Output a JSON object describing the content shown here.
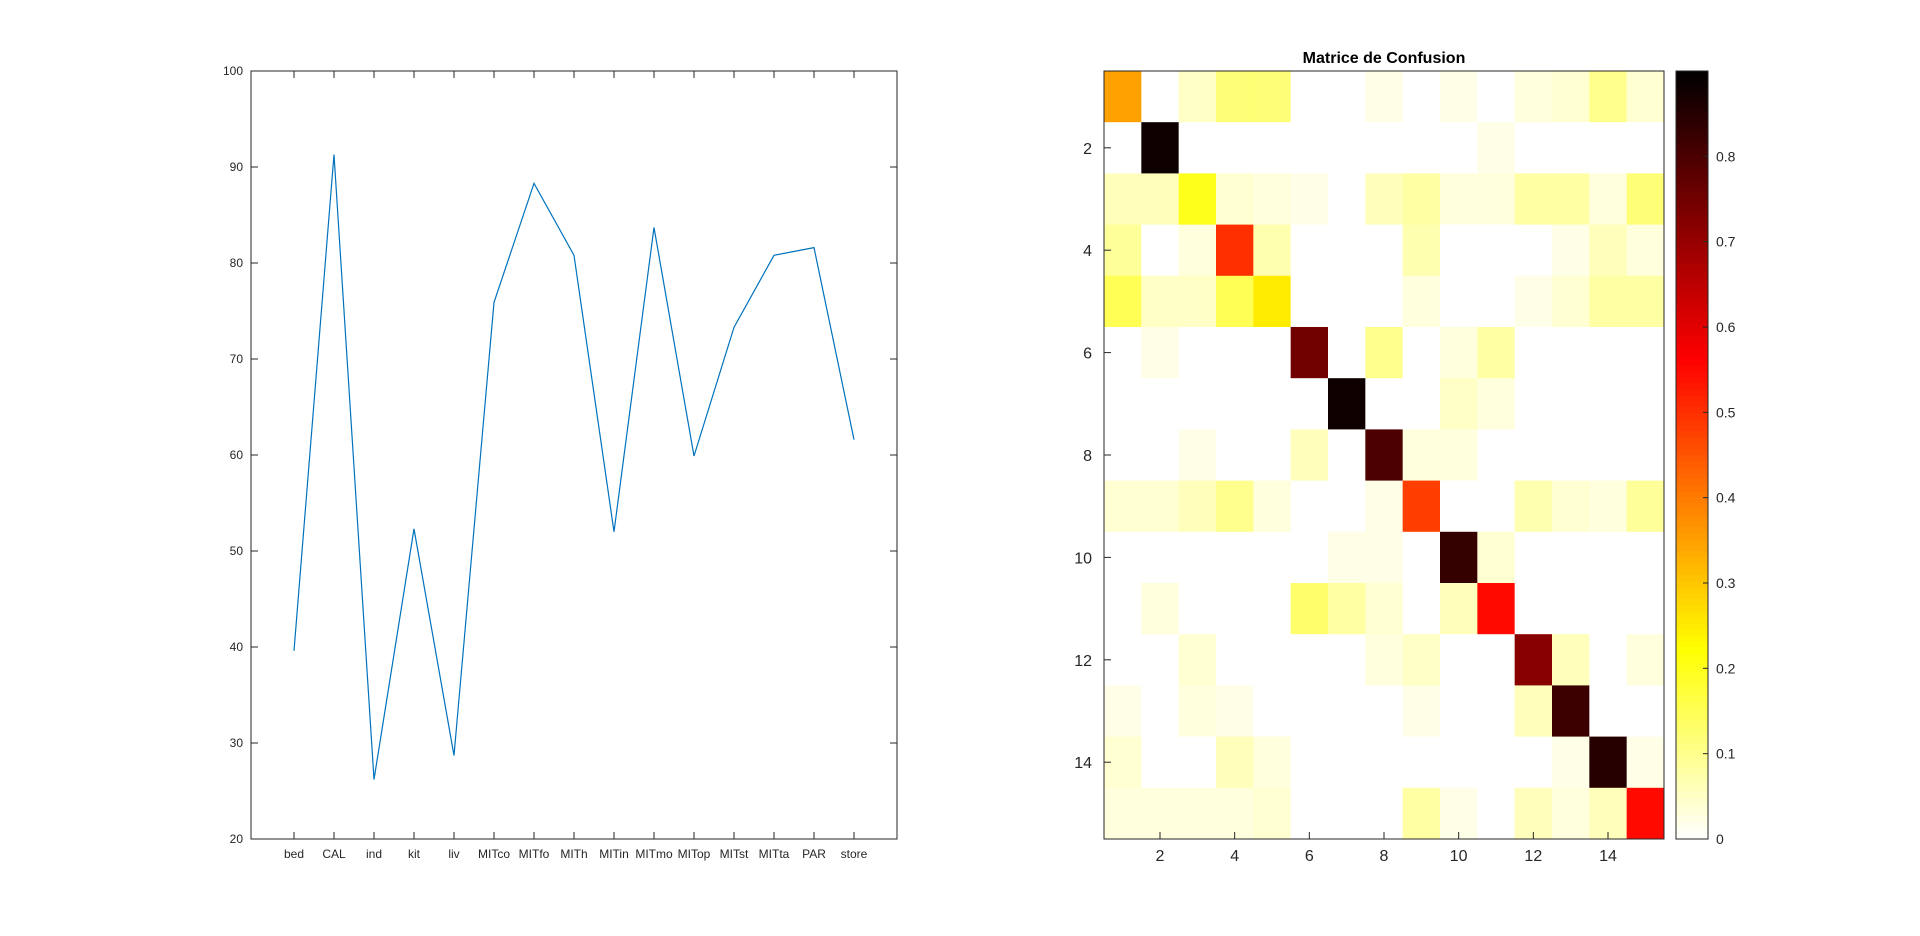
{
  "figure": {
    "background": "#ffffff",
    "axis_color": "#262626",
    "line_color": "#0072bd"
  },
  "chart_data": [
    {
      "type": "line",
      "title": "",
      "xlabel": "",
      "ylabel": "",
      "categories": [
        "bed",
        "CAL",
        "ind",
        "kit",
        "liv",
        "MITco",
        "MITfo",
        "MITh",
        "MITin",
        "MITmo",
        "MITop",
        "MITst",
        "MITta",
        "PAR",
        "store"
      ],
      "values": [
        39.6,
        91.3,
        26.2,
        52.3,
        28.7,
        75.9,
        88.3,
        80.8,
        52.0,
        83.7,
        59.9,
        73.3,
        80.8,
        81.6,
        61.6
      ],
      "ylim": [
        20,
        100
      ],
      "yticks": [
        20,
        30,
        40,
        50,
        60,
        70,
        80,
        90,
        100
      ],
      "grid": false
    },
    {
      "type": "heatmap",
      "title": "Matrice de Confusion",
      "colormap": "hot (reversed)",
      "colorbar_ticks": [
        0,
        0.1,
        0.2,
        0.3,
        0.4,
        0.5,
        0.6,
        0.7,
        0.8
      ],
      "clim": [
        0,
        0.9
      ],
      "xticks": [
        2,
        4,
        6,
        8,
        10,
        12,
        14
      ],
      "yticks": [
        2,
        4,
        6,
        8,
        10,
        12,
        14
      ],
      "rows": [
        [
          0.35,
          0.0,
          0.05,
          0.12,
          0.12,
          0.0,
          0.0,
          0.02,
          0.0,
          0.02,
          0.0,
          0.03,
          0.04,
          0.1,
          0.04
        ],
        [
          0.0,
          0.88,
          0.0,
          0.0,
          0.0,
          0.0,
          0.0,
          0.0,
          0.0,
          0.0,
          0.02,
          0.0,
          0.0,
          0.0,
          0.0
        ],
        [
          0.06,
          0.06,
          0.2,
          0.04,
          0.03,
          0.02,
          0.0,
          0.06,
          0.08,
          0.03,
          0.03,
          0.08,
          0.08,
          0.03,
          0.12
        ],
        [
          0.09,
          0.0,
          0.03,
          0.5,
          0.07,
          0.0,
          0.0,
          0.0,
          0.07,
          0.0,
          0.0,
          0.0,
          0.02,
          0.06,
          0.03
        ],
        [
          0.15,
          0.05,
          0.05,
          0.15,
          0.25,
          0.0,
          0.0,
          0.0,
          0.03,
          0.0,
          0.0,
          0.02,
          0.04,
          0.08,
          0.08
        ],
        [
          0.0,
          0.02,
          0.0,
          0.0,
          0.0,
          0.75,
          0.0,
          0.1,
          0.0,
          0.03,
          0.08,
          0.0,
          0.0,
          0.0,
          0.0
        ],
        [
          0.0,
          0.0,
          0.0,
          0.0,
          0.0,
          0.0,
          0.88,
          0.0,
          0.0,
          0.05,
          0.03,
          0.0,
          0.0,
          0.0,
          0.0
        ],
        [
          0.0,
          0.0,
          0.02,
          0.0,
          0.0,
          0.06,
          0.0,
          0.8,
          0.03,
          0.03,
          0.0,
          0.0,
          0.0,
          0.0,
          0.0
        ],
        [
          0.04,
          0.04,
          0.06,
          0.1,
          0.03,
          0.0,
          0.0,
          0.02,
          0.48,
          0.0,
          0.0,
          0.07,
          0.04,
          0.03,
          0.09
        ],
        [
          0.0,
          0.0,
          0.0,
          0.0,
          0.0,
          0.0,
          0.02,
          0.02,
          0.0,
          0.83,
          0.04,
          0.0,
          0.0,
          0.0,
          0.0
        ],
        [
          0.0,
          0.03,
          0.0,
          0.0,
          0.0,
          0.13,
          0.08,
          0.04,
          0.0,
          0.06,
          0.55,
          0.0,
          0.0,
          0.0,
          0.0
        ],
        [
          0.0,
          0.0,
          0.04,
          0.0,
          0.0,
          0.0,
          0.0,
          0.03,
          0.05,
          0.0,
          0.0,
          0.72,
          0.06,
          0.0,
          0.03
        ],
        [
          0.02,
          0.0,
          0.03,
          0.02,
          0.0,
          0.0,
          0.0,
          0.0,
          0.02,
          0.0,
          0.0,
          0.06,
          0.82,
          0.0,
          0.0
        ],
        [
          0.04,
          0.0,
          0.0,
          0.06,
          0.03,
          0.0,
          0.0,
          0.0,
          0.0,
          0.0,
          0.0,
          0.0,
          0.02,
          0.85,
          0.02
        ],
        [
          0.03,
          0.03,
          0.03,
          0.03,
          0.04,
          0.0,
          0.0,
          0.0,
          0.08,
          0.02,
          0.0,
          0.06,
          0.03,
          0.06,
          0.55
        ]
      ]
    }
  ]
}
